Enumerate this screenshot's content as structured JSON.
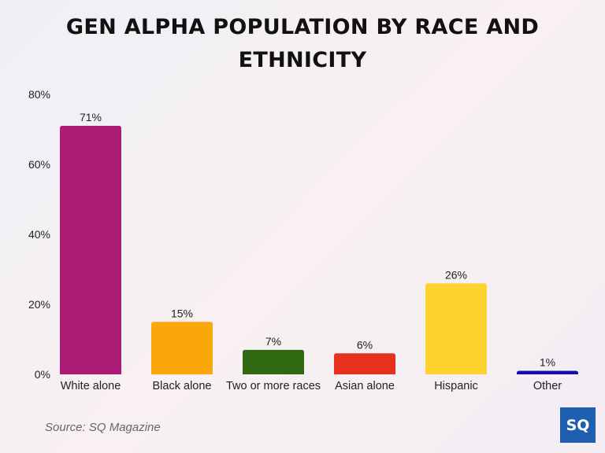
{
  "chart_data": {
    "type": "bar",
    "title": "GEN ALPHA POPULATION BY RACE AND ETHNICITY",
    "categories": [
      "White alone",
      "Black alone",
      "Two or more races",
      "Asian alone",
      "Hispanic",
      "Other"
    ],
    "values": [
      71,
      15,
      7,
      6,
      26,
      1
    ],
    "data_labels": [
      "71%",
      "15%",
      "7%",
      "6%",
      "26%",
      "1%"
    ],
    "colors": [
      "#ab1c76",
      "#fba70a",
      "#2f6a12",
      "#e8301f",
      "#fed22f",
      "#1a0aa8"
    ],
    "ylim": [
      0,
      80
    ],
    "yticks": [
      0,
      20,
      40,
      60,
      80
    ],
    "ytick_labels": [
      "0%",
      "20%",
      "40%",
      "60%",
      "80%"
    ],
    "xlabel": "",
    "ylabel": "",
    "grid": false,
    "legend": "none"
  },
  "source": "Source: SQ Magazine",
  "logo_text": "SQ"
}
